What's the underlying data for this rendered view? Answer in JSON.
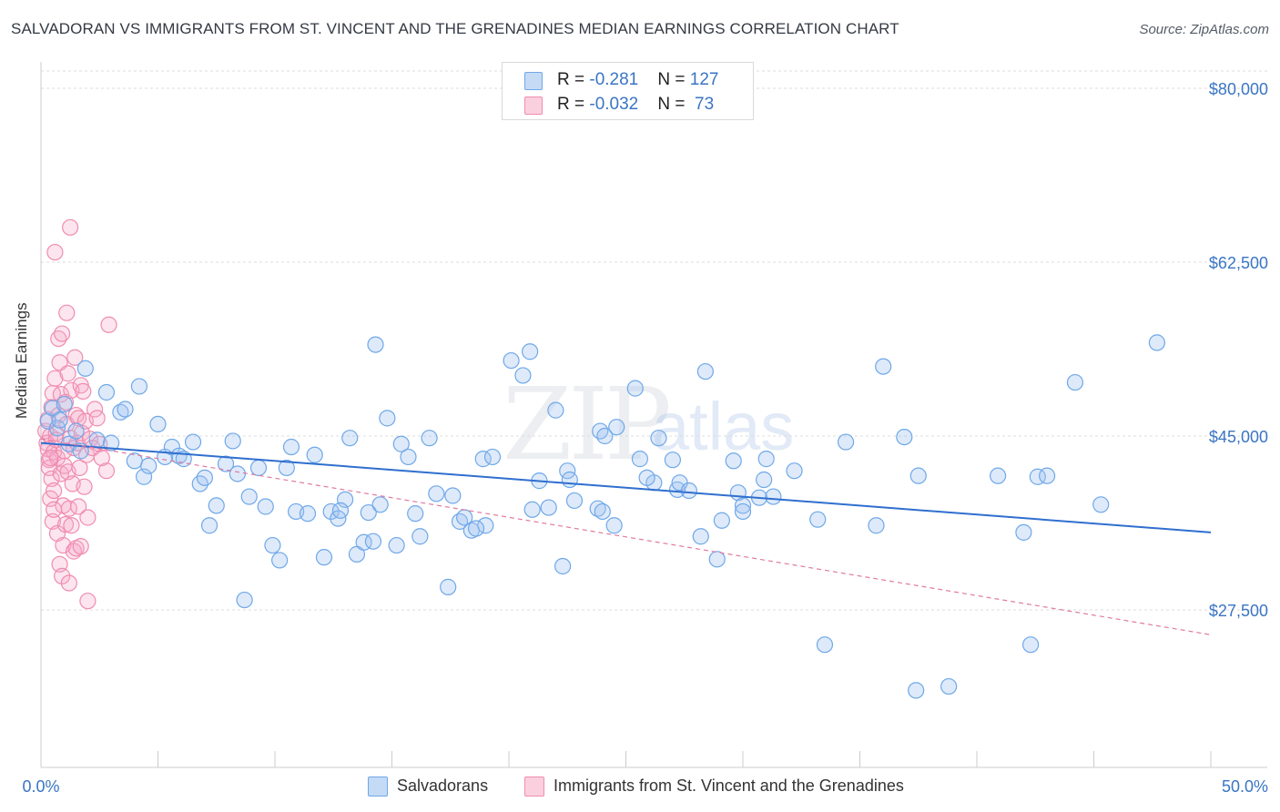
{
  "title": "SALVADORAN VS IMMIGRANTS FROM ST. VINCENT AND THE GRENADINES MEDIAN EARNINGS CORRELATION CHART",
  "source": "Source: ZipAtlas.com",
  "watermark": {
    "zip": "ZIP",
    "atlas": "atlas"
  },
  "colors": {
    "blue": "#6fa8e8",
    "blue_line": "#2f6fcf",
    "pink": "#f08cb0",
    "pink_line": "#e07aa0",
    "axis_text": "#3a75c4"
  },
  "legend_top": [
    {
      "r_label": "R = ",
      "r": "-0.281",
      "n_label": "N = ",
      "n": "127"
    },
    {
      "r_label": "R = ",
      "r": "-0.032",
      "n_label": "N = ",
      "n": " 73"
    }
  ],
  "legend_bottom": [
    "Salvadorans",
    "Immigrants from St. Vincent and the Grenadines"
  ],
  "chart_data": {
    "type": "scatter",
    "ylabel": "Median Earnings",
    "xlim": [
      0,
      50
    ],
    "ylim": [
      12500,
      83000
    ],
    "x_tick_labels": [
      "0.0%",
      "50.0%"
    ],
    "y_ticks": [
      {
        "value": 80000,
        "label": "$80,000"
      },
      {
        "value": 62500,
        "label": "$62,500"
      },
      {
        "value": 45000,
        "label": "$45,000"
      },
      {
        "value": 27500,
        "label": "$27,500"
      }
    ],
    "series": [
      {
        "name": "Salvadorans",
        "trend": [
          [
            0,
            44300
          ],
          [
            50,
            35300
          ]
        ],
        "points": [
          [
            0.3,
            46500
          ],
          [
            0.5,
            47800
          ],
          [
            0.7,
            45800
          ],
          [
            0.8,
            46600
          ],
          [
            1.0,
            48200
          ],
          [
            1.2,
            44200
          ],
          [
            1.5,
            45500
          ],
          [
            1.7,
            43500
          ],
          [
            1.9,
            51800
          ],
          [
            2.4,
            44600
          ],
          [
            2.8,
            49400
          ],
          [
            3.0,
            44300
          ],
          [
            3.4,
            47400
          ],
          [
            3.6,
            47700
          ],
          [
            4.0,
            42500
          ],
          [
            4.2,
            50000
          ],
          [
            4.4,
            40900
          ],
          [
            4.6,
            42000
          ],
          [
            5.0,
            46200
          ],
          [
            5.3,
            42900
          ],
          [
            5.6,
            43900
          ],
          [
            5.9,
            43000
          ],
          [
            6.1,
            42700
          ],
          [
            6.5,
            44400
          ],
          [
            6.8,
            40200
          ],
          [
            7.0,
            40800
          ],
          [
            7.2,
            36000
          ],
          [
            7.5,
            38000
          ],
          [
            7.9,
            42200
          ],
          [
            8.2,
            44500
          ],
          [
            8.4,
            41200
          ],
          [
            8.7,
            28500
          ],
          [
            8.9,
            38900
          ],
          [
            9.3,
            41800
          ],
          [
            9.6,
            37900
          ],
          [
            9.9,
            34000
          ],
          [
            10.2,
            32500
          ],
          [
            10.5,
            41800
          ],
          [
            10.7,
            43900
          ],
          [
            10.9,
            37400
          ],
          [
            11.4,
            37200
          ],
          [
            11.7,
            43100
          ],
          [
            12.1,
            32800
          ],
          [
            12.4,
            37400
          ],
          [
            12.7,
            36700
          ],
          [
            13.0,
            38600
          ],
          [
            13.2,
            44800
          ],
          [
            13.5,
            33100
          ],
          [
            13.8,
            34300
          ],
          [
            14.0,
            37300
          ],
          [
            14.2,
            34400
          ],
          [
            14.5,
            38100
          ],
          [
            14.8,
            46800
          ],
          [
            14.3,
            54200
          ],
          [
            15.2,
            34000
          ],
          [
            15.4,
            44200
          ],
          [
            15.7,
            42900
          ],
          [
            16.0,
            37200
          ],
          [
            16.2,
            34900
          ],
          [
            16.6,
            44800
          ],
          [
            16.9,
            39200
          ],
          [
            17.4,
            29800
          ],
          [
            17.6,
            39000
          ],
          [
            17.9,
            36400
          ],
          [
            18.1,
            36800
          ],
          [
            18.4,
            35500
          ],
          [
            18.9,
            42700
          ],
          [
            19.3,
            42900
          ],
          [
            19.0,
            36000
          ],
          [
            20.1,
            52600
          ],
          [
            20.6,
            51100
          ],
          [
            20.9,
            53500
          ],
          [
            21.0,
            37600
          ],
          [
            21.3,
            40500
          ],
          [
            21.7,
            37800
          ],
          [
            22.0,
            47600
          ],
          [
            22.3,
            31900
          ],
          [
            22.5,
            41500
          ],
          [
            22.8,
            38500
          ],
          [
            23.8,
            37700
          ],
          [
            23.9,
            45500
          ],
          [
            24.0,
            37400
          ],
          [
            24.1,
            45000
          ],
          [
            24.6,
            45900
          ],
          [
            25.4,
            49800
          ],
          [
            25.6,
            42700
          ],
          [
            26.2,
            40300
          ],
          [
            27.2,
            39600
          ],
          [
            27.3,
            40300
          ],
          [
            27.7,
            39500
          ],
          [
            27.0,
            42600
          ],
          [
            28.2,
            34900
          ],
          [
            28.4,
            51500
          ],
          [
            28.9,
            32600
          ],
          [
            29.1,
            36500
          ],
          [
            29.6,
            42500
          ],
          [
            29.8,
            39300
          ],
          [
            30.0,
            38000
          ],
          [
            30.9,
            40600
          ],
          [
            30.7,
            38800
          ],
          [
            31.0,
            42700
          ],
          [
            31.3,
            38900
          ],
          [
            33.2,
            36600
          ],
          [
            34.4,
            44400
          ],
          [
            35.7,
            36000
          ],
          [
            30.0,
            37400
          ],
          [
            33.5,
            24000
          ],
          [
            37.5,
            41000
          ],
          [
            42.0,
            35300
          ],
          [
            42.6,
            40900
          ],
          [
            44.2,
            50400
          ],
          [
            36.0,
            52000
          ],
          [
            38.8,
            19800
          ],
          [
            45.3,
            38100
          ],
          [
            47.7,
            54400
          ],
          [
            40.9,
            41000
          ],
          [
            42.3,
            24000
          ],
          [
            43.0,
            41000
          ],
          [
            36.9,
            44900
          ],
          [
            26.4,
            44800
          ],
          [
            24.5,
            36000
          ],
          [
            32.2,
            41500
          ],
          [
            12.8,
            37500
          ],
          [
            25.9,
            40800
          ],
          [
            18.6,
            35700
          ],
          [
            22.6,
            40600
          ],
          [
            37.4,
            19400
          ]
        ]
      },
      {
        "name": "Immigrants from St. Vincent and the Grenadines",
        "trend": [
          [
            0,
            44700
          ],
          [
            50,
            25000
          ]
        ],
        "points": [
          [
            0.2,
            45500
          ],
          [
            0.25,
            44300
          ],
          [
            0.3,
            46700
          ],
          [
            0.3,
            43700
          ],
          [
            0.35,
            42600
          ],
          [
            0.35,
            41800
          ],
          [
            0.4,
            45000
          ],
          [
            0.4,
            38700
          ],
          [
            0.45,
            47900
          ],
          [
            0.45,
            40700
          ],
          [
            0.5,
            49300
          ],
          [
            0.5,
            36400
          ],
          [
            0.55,
            43400
          ],
          [
            0.55,
            39500
          ],
          [
            0.6,
            50800
          ],
          [
            0.6,
            63500
          ],
          [
            0.65,
            45300
          ],
          [
            0.65,
            44600
          ],
          [
            0.7,
            42800
          ],
          [
            0.7,
            35200
          ],
          [
            0.75,
            47100
          ],
          [
            0.75,
            54800
          ],
          [
            0.8,
            52400
          ],
          [
            0.8,
            32100
          ],
          [
            0.85,
            49200
          ],
          [
            0.85,
            41200
          ],
          [
            0.9,
            55300
          ],
          [
            0.9,
            30900
          ],
          [
            0.95,
            38000
          ],
          [
            0.95,
            34000
          ],
          [
            1.0,
            42000
          ],
          [
            1.0,
            43500
          ],
          [
            1.05,
            48400
          ],
          [
            1.05,
            36100
          ],
          [
            1.1,
            57400
          ],
          [
            1.1,
            46200
          ],
          [
            1.15,
            51300
          ],
          [
            1.15,
            41400
          ],
          [
            1.2,
            37700
          ],
          [
            1.2,
            30200
          ],
          [
            1.25,
            44800
          ],
          [
            1.3,
            49600
          ],
          [
            1.3,
            36000
          ],
          [
            1.35,
            40200
          ],
          [
            1.4,
            43800
          ],
          [
            1.4,
            33400
          ],
          [
            1.45,
            52900
          ],
          [
            1.5,
            47100
          ],
          [
            1.5,
            33700
          ],
          [
            1.55,
            44300
          ],
          [
            1.6,
            46800
          ],
          [
            1.6,
            37900
          ],
          [
            1.65,
            41800
          ],
          [
            1.7,
            50100
          ],
          [
            1.7,
            33900
          ],
          [
            1.75,
            45300
          ],
          [
            1.8,
            49500
          ],
          [
            1.85,
            39900
          ],
          [
            1.9,
            46500
          ],
          [
            1.95,
            43100
          ],
          [
            2.0,
            28400
          ],
          [
            2.0,
            36800
          ],
          [
            2.1,
            44700
          ],
          [
            2.2,
            43800
          ],
          [
            2.3,
            47700
          ],
          [
            2.4,
            46800
          ],
          [
            2.5,
            44200
          ],
          [
            2.6,
            42800
          ],
          [
            2.8,
            41500
          ],
          [
            2.9,
            56200
          ],
          [
            0.4,
            42800
          ],
          [
            1.25,
            66000
          ],
          [
            0.55,
            37600
          ]
        ]
      }
    ]
  }
}
